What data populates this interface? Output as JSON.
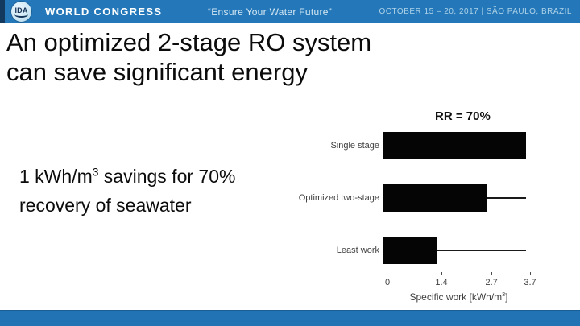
{
  "header": {
    "logo_text": "IDA",
    "congress_label": "WORLD CONGRESS",
    "tagline": "“Ensure Your Water Future”",
    "event_info": "OCTOBER 15 – 20, 2017  | SÃO PAULO, BRAZIL"
  },
  "title": {
    "line1": "An optimized 2-stage RO system",
    "line2": "can save significant energy"
  },
  "annotation": "RR = 70%",
  "body": {
    "line1_prefix": "1 kWh/m",
    "line1_sup": "3",
    "line1_suffix": " savings for 70%",
    "line2": "recovery of seawater"
  },
  "chart_data": {
    "type": "bar",
    "orientation": "horizontal",
    "categories": [
      "Single stage",
      "Optimized two-stage",
      "Least work"
    ],
    "values": [
      3.7,
      2.7,
      1.4
    ],
    "reference_lines_to": 3.7,
    "xticks": [
      0,
      1.4,
      2.7,
      3.7
    ],
    "xlim": [
      0,
      3.7
    ],
    "xlabel": "Specific work [kWh/m³]",
    "xlabel_prefix": "Specific work [kWh/m",
    "xlabel_sup": "3",
    "xlabel_suffix": "]",
    "annotation": "RR = 70%",
    "grid": false,
    "legend": "none"
  },
  "colors": {
    "header_blue": "#2478b9",
    "footer_blue": "#2173b4",
    "edge_strip_navy": "#14395f",
    "bar": "#050505",
    "title_text": "#0b0b0b",
    "chart_text": "#3f3f3f"
  }
}
